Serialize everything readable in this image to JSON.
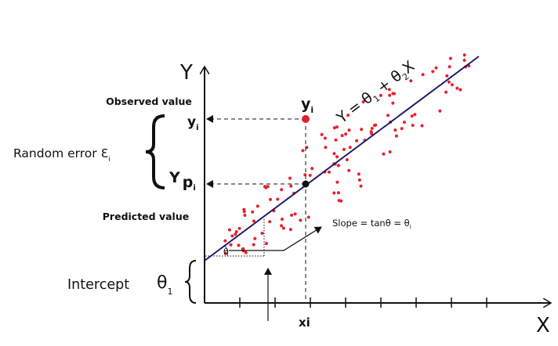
{
  "axes": {
    "y_label": "Y",
    "x_label": "X",
    "x_point": "xi"
  },
  "observed": {
    "label": "Observed value",
    "symbol": "y",
    "sub": "i"
  },
  "observed_axis": {
    "symbol": "y",
    "sub": "i"
  },
  "predicted": {
    "label": "Predicted value",
    "symbol": "Y",
    "symbol2": "p",
    "sub": "i"
  },
  "random_error": {
    "label": "Random error",
    "symbol": "Ɛ",
    "sub": "i"
  },
  "intercept": {
    "label": "Intercept",
    "symbol": "θ",
    "sub": "1"
  },
  "slope": {
    "label": "Slope = tanθ = θ",
    "sub": "i"
  },
  "angle": "θ",
  "equation": {
    "lhs": "Y = θ",
    "sub1": "1",
    "mid": " + θ",
    "sub2": "2",
    "rhs": "X"
  }
}
